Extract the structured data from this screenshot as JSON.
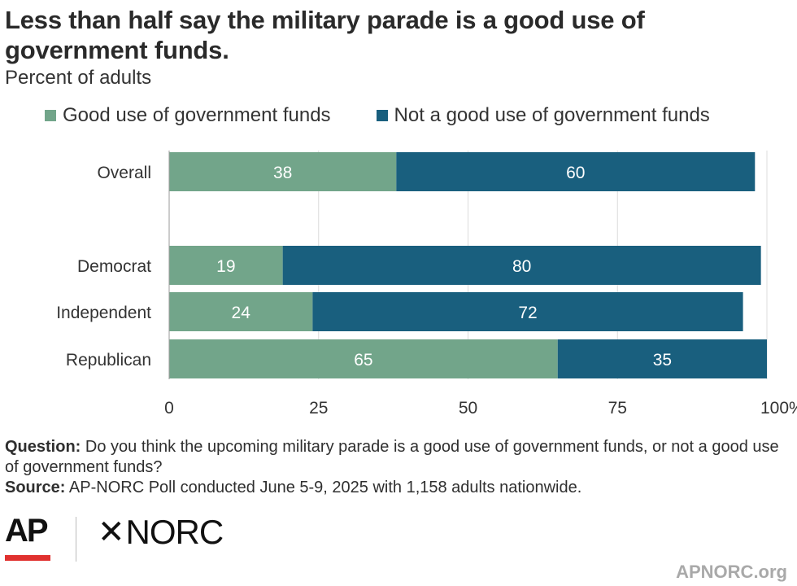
{
  "title": "Less than half say the military parade is a good use of government funds.",
  "subtitle": "Percent of adults",
  "legend": [
    {
      "label": "Good use of government funds",
      "color": "#72a58a"
    },
    {
      "label": "Not a good use of government funds",
      "color": "#195f7e"
    }
  ],
  "chart_data": {
    "type": "bar",
    "orientation": "horizontal",
    "stacked": true,
    "categories": [
      "Overall",
      "Democrat",
      "Independent",
      "Republican"
    ],
    "series": [
      {
        "name": "Good use of government funds",
        "values": [
          38,
          19,
          24,
          65
        ],
        "color": "#72a58a"
      },
      {
        "name": "Not a good use of government funds",
        "values": [
          60,
          80,
          72,
          35
        ],
        "color": "#195f7e"
      }
    ],
    "xlim": [
      0,
      100
    ],
    "xticks": [
      "0",
      "25",
      "50",
      "75",
      "100%"
    ],
    "grid": true
  },
  "notes": {
    "question_label": "Question:",
    "question_text": " Do you think the upcoming military parade is a good use of government funds, or not a good use of government funds?",
    "source_label": "Source:",
    "source_text": " AP-NORC Poll conducted June 5-9, 2025 with 1,158 adults nationwide."
  },
  "logos": {
    "ap": "AP",
    "norc": "NORC",
    "norc_mark": "✕"
  },
  "site": "APNORC.org"
}
